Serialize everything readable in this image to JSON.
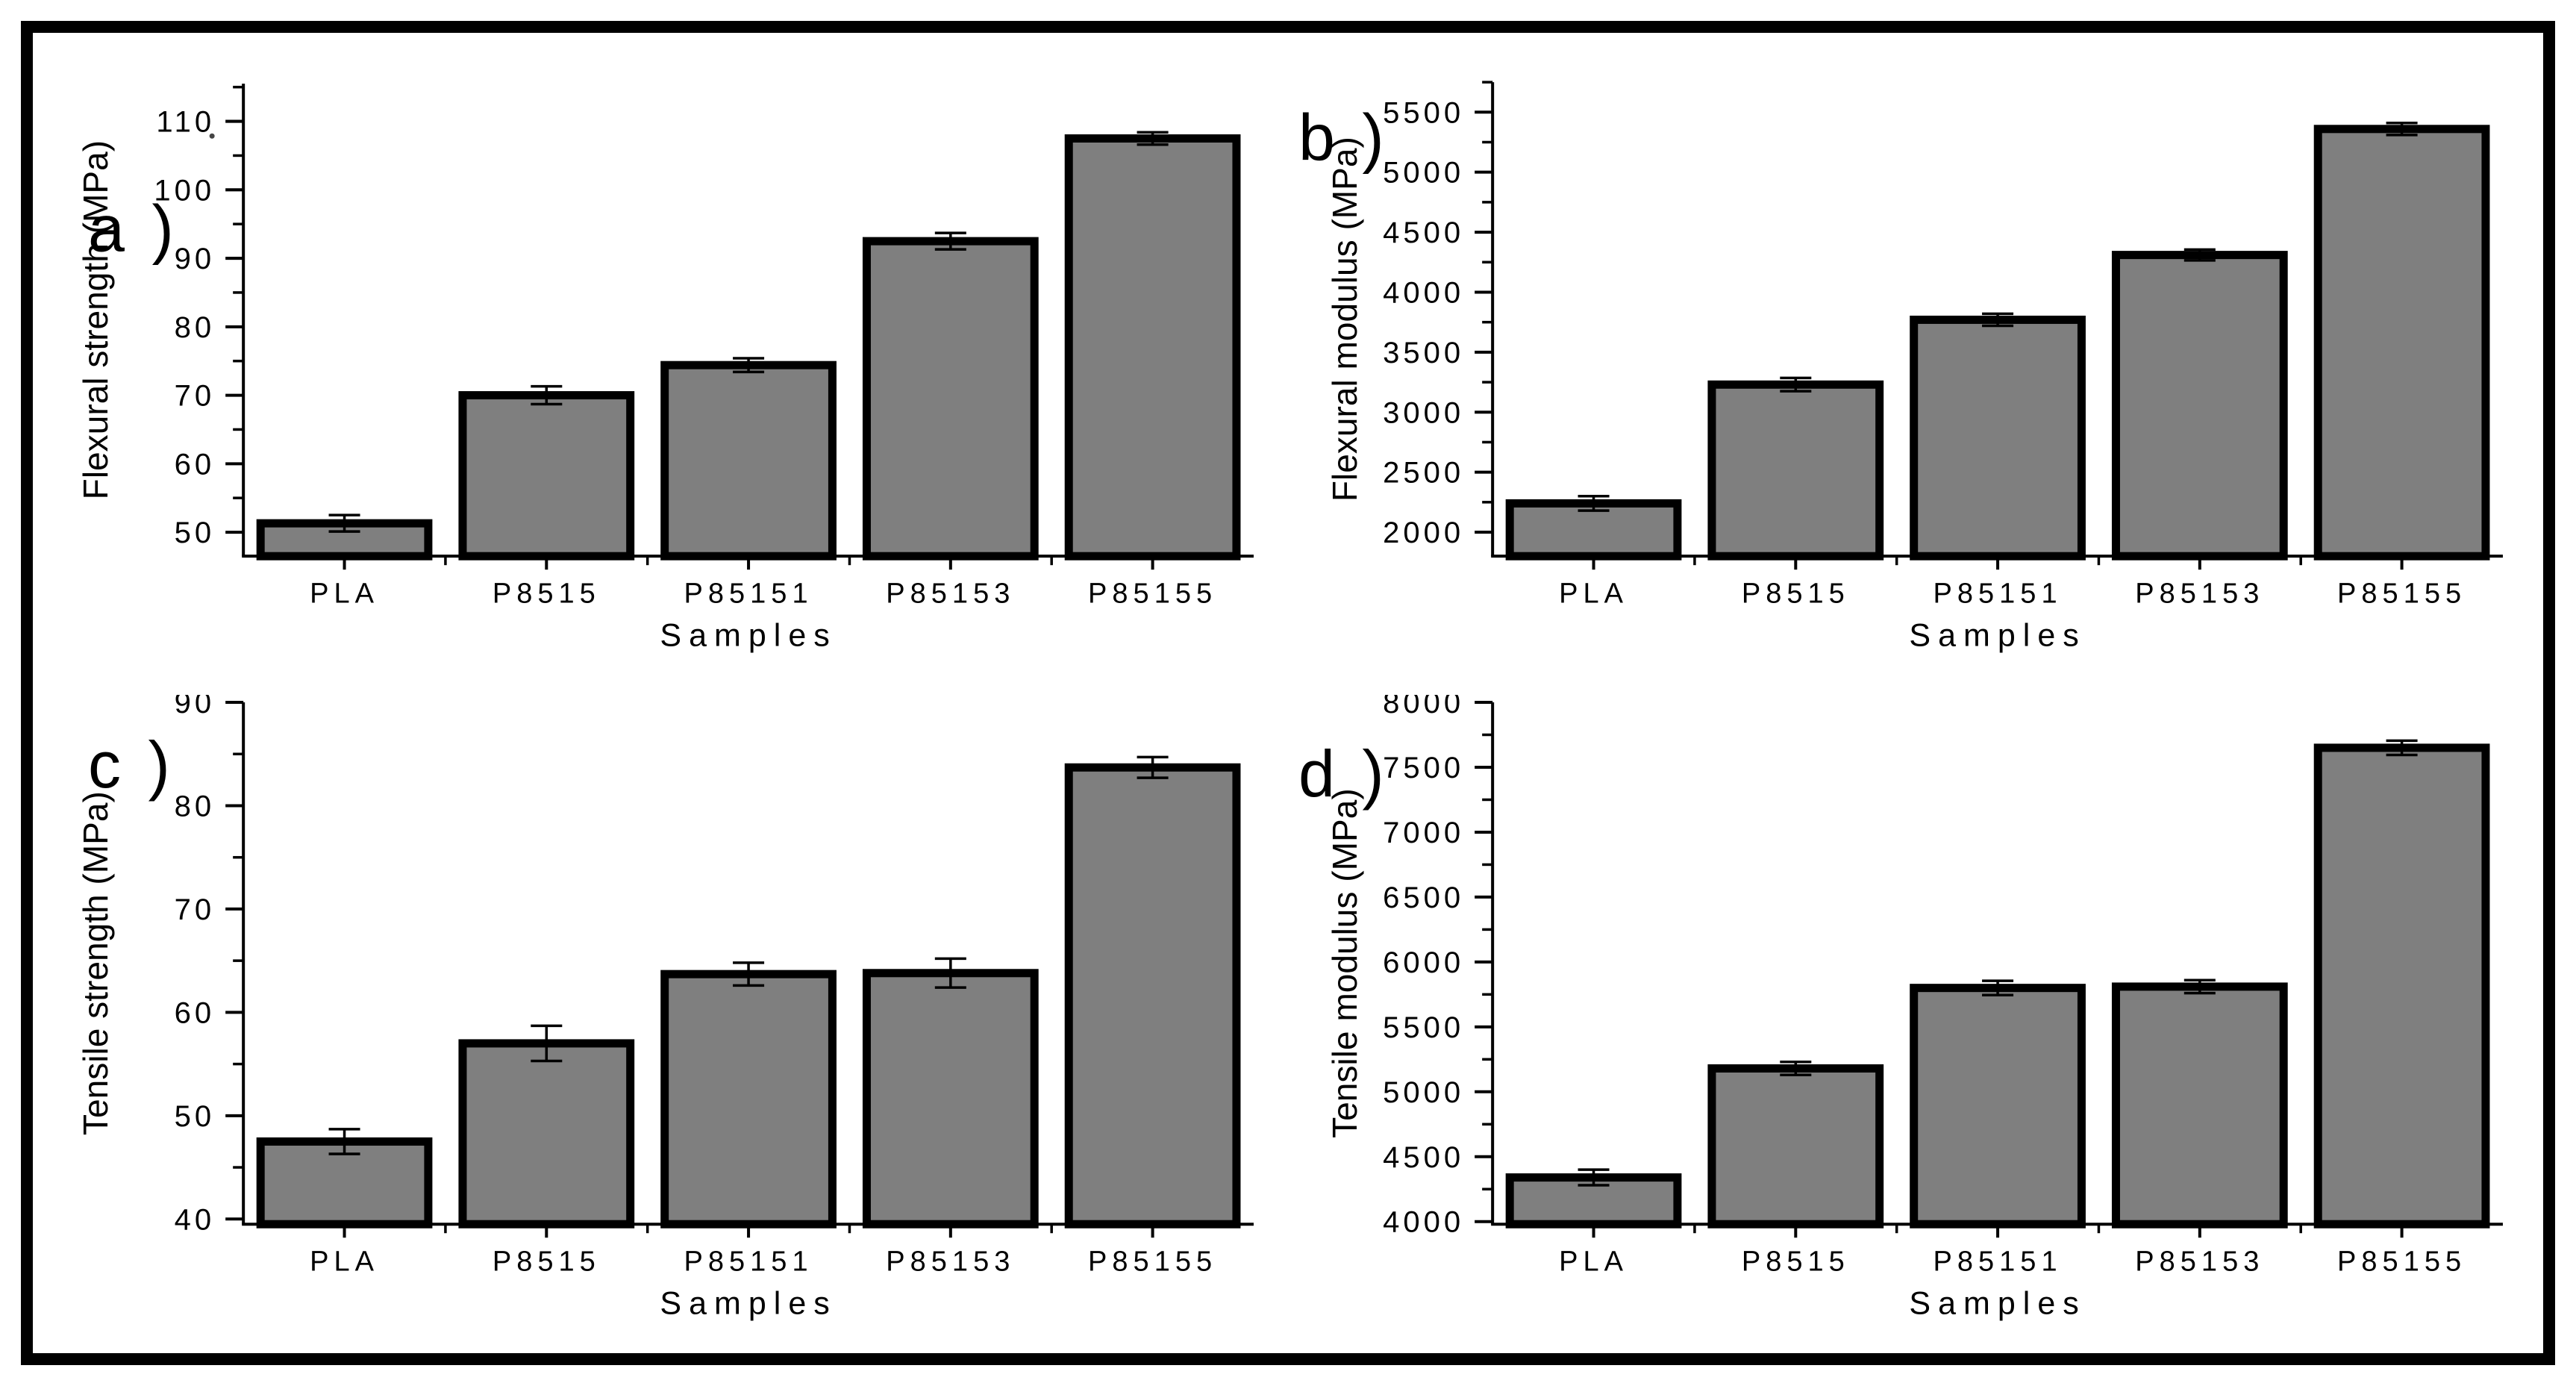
{
  "figure": {
    "colors": {
      "bar_fill": "#7f7f7f",
      "bar_border": "#000000",
      "axis_color": "#000000",
      "background": "#ffffff",
      "frame_border": "#000000"
    }
  },
  "chart_data": [
    {
      "type": "bar",
      "panel_label": "a )",
      "ylabel": "Flexural strength (MPa)",
      "xlabel": "Samples",
      "categories": [
        "PLA",
        "P8515",
        "P85151",
        "P85153",
        "P85155"
      ],
      "values": [
        51.3,
        70.0,
        74.4,
        92.5,
        107.5
      ],
      "errors": [
        1.2,
        1.3,
        1.0,
        1.2,
        0.9
      ],
      "ylim": [
        46.5,
        115.5
      ],
      "yticks": {
        "start": 50,
        "end": 110,
        "major_step": 10,
        "minor_step": 5
      },
      "grid": false,
      "legend": null
    },
    {
      "type": "bar",
      "panel_label": "b )",
      "ylabel": "Flexural modulus (MPa)",
      "xlabel": "Samples",
      "categories": [
        "PLA",
        "P8515",
        "P85151",
        "P85153",
        "P85155"
      ],
      "values": [
        2240,
        3230,
        3770,
        4310,
        5360
      ],
      "errors": [
        60,
        55,
        50,
        45,
        50
      ],
      "ylim": [
        1800,
        5750
      ],
      "yticks": {
        "start": 2000,
        "end": 5500,
        "major_step": 500,
        "minor_step": 250
      },
      "grid": false,
      "legend": null
    },
    {
      "type": "bar",
      "panel_label": "c )",
      "ylabel": "Tensile strength (MPa)",
      "xlabel": "Samples",
      "categories": [
        "PLA",
        "P8515",
        "P85151",
        "P85153",
        "P85155"
      ],
      "values": [
        47.5,
        57.0,
        63.7,
        63.8,
        83.7
      ],
      "errors": [
        1.2,
        1.7,
        1.1,
        1.4,
        1.0
      ],
      "ylim": [
        39.5,
        90
      ],
      "yticks": {
        "start": 40,
        "end": 90,
        "major_step": 10,
        "minor_step": 5
      },
      "grid": false,
      "legend": null
    },
    {
      "type": "bar",
      "panel_label": "d )",
      "ylabel": "Tensile modulus (MPa)",
      "xlabel": "Samples",
      "categories": [
        "PLA",
        "P8515",
        "P85151",
        "P85153",
        "P85155"
      ],
      "values": [
        4340,
        5180,
        5800,
        5810,
        7650
      ],
      "errors": [
        60,
        50,
        55,
        50,
        55
      ],
      "ylim": [
        3980,
        8000
      ],
      "yticks": {
        "start": 4000,
        "end": 8000,
        "major_step": 500,
        "minor_step": 250
      },
      "grid": false,
      "legend": null
    }
  ]
}
